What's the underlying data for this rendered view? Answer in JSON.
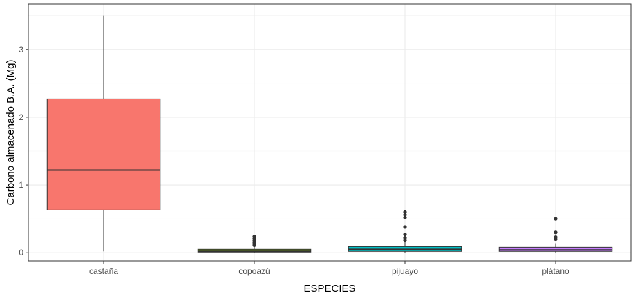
{
  "chart_data": {
    "type": "box",
    "title": "",
    "xlabel": "ESPECIES",
    "ylabel": "Carbono almacenado B.A. (Mg)",
    "ylim": [
      -0.12,
      3.67
    ],
    "yticks": [
      0,
      1,
      2,
      3
    ],
    "grid": true,
    "legend": "none",
    "categories": [
      "castaña",
      "copoazú",
      "pijuayo",
      "plátano"
    ],
    "boxes": [
      {
        "name": "castaña",
        "color": "#F8766D",
        "min": 0.02,
        "q1": 0.63,
        "median": 1.22,
        "q3": 2.27,
        "max": 3.5,
        "outliers": []
      },
      {
        "name": "copoazú",
        "color": "#7CAE00",
        "min": 0.0,
        "q1": 0.01,
        "median": 0.02,
        "q3": 0.05,
        "max": 0.09,
        "outliers": [
          0.11,
          0.13,
          0.15,
          0.18,
          0.21,
          0.24
        ]
      },
      {
        "name": "pijuayo",
        "color": "#00BFC4",
        "min": 0.0,
        "q1": 0.02,
        "median": 0.05,
        "q3": 0.09,
        "max": 0.16,
        "outliers": [
          0.18,
          0.22,
          0.27,
          0.38,
          0.52,
          0.56,
          0.6
        ]
      },
      {
        "name": "plátano",
        "color": "#C77CFF",
        "min": 0.0,
        "q1": 0.02,
        "median": 0.04,
        "q3": 0.08,
        "max": 0.14,
        "outliers": [
          0.2,
          0.23,
          0.3,
          0.5
        ]
      }
    ]
  }
}
